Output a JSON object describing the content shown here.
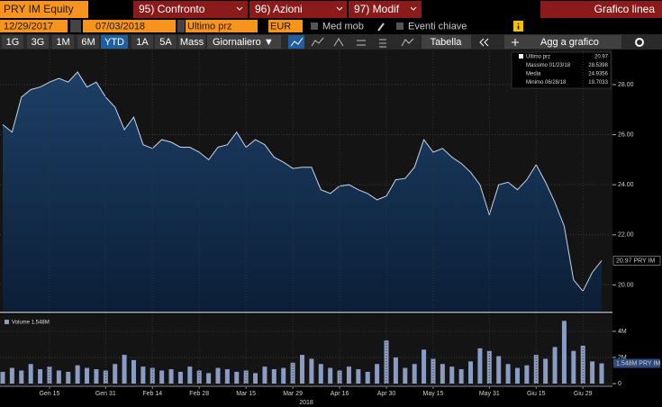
{
  "toolbar": {
    "ticker": "PRY IM Equity",
    "menu": [
      "95) Confronto",
      "96) Azioni",
      "97) Modif"
    ],
    "chart_kind": "Grafico linea",
    "start_date": "12/29/2017",
    "end_date": "07/03/2018",
    "field": "Ultimo prz",
    "currency": "EUR",
    "options": [
      "Med mob",
      "Eventi chiave"
    ],
    "periods": [
      "1G",
      "3G",
      "1M",
      "6M",
      "YTD",
      "1A",
      "5A",
      "Mass"
    ],
    "frequency": "Giornaliero ▼",
    "table_button": "Tabella",
    "add_button": "Agg a grafico"
  },
  "chart_data": [
    {
      "type": "area",
      "values": [
        26.4,
        26.1,
        27.5,
        27.8,
        27.9,
        28.1,
        28.25,
        28.1,
        28.5,
        27.9,
        28.1,
        27.5,
        27.1,
        26.2,
        26.7,
        25.6,
        25.45,
        25.8,
        25.7,
        25.5,
        25.5,
        25.3,
        25.0,
        25.5,
        25.6,
        26.1,
        25.5,
        25.8,
        25.6,
        25.1,
        24.9,
        24.65,
        24.7,
        24.7,
        23.8,
        23.65,
        23.95,
        24.0,
        23.8,
        23.65,
        23.4,
        23.55,
        24.2,
        24.25,
        24.7,
        25.8,
        25.3,
        25.45,
        25.1,
        24.85,
        24.5,
        24.0,
        22.8,
        24.0,
        24.1,
        23.8,
        24.2,
        24.8,
        24.1,
        23.3,
        22.35,
        20.2,
        19.75,
        20.5,
        20.97
      ],
      "color": "#c9d3e3",
      "ylim": [
        18.9,
        29.4
      ],
      "yticks": [
        {
          "value": 20,
          "label": "20.00"
        },
        {
          "value": 22,
          "label": "22.00"
        },
        {
          "value": 24,
          "label": "24.00"
        },
        {
          "value": 26,
          "label": "26.00"
        },
        {
          "value": 28,
          "label": "28.00"
        }
      ],
      "grid": true,
      "price_tag": "20.97 PRY IM",
      "stats": [
        [
          "Ultimo prz",
          "20.97"
        ],
        [
          "Massimo 01/23/18",
          "28.5398"
        ],
        [
          "Media",
          "24.9356"
        ],
        [
          "Minimo 06/28/18",
          "19.7033"
        ]
      ]
    },
    {
      "type": "bar",
      "legend_label": "Volume 1.548M",
      "value_tag": "1.548M PRY IM",
      "categories": [
        null,
        null,
        null,
        null,
        null,
        "Gen 15",
        null,
        null,
        null,
        null,
        null,
        "Gen 31",
        null,
        null,
        null,
        null,
        "Feb 14",
        null,
        null,
        null,
        null,
        "Feb 28",
        null,
        null,
        null,
        null,
        "Mar 15",
        null,
        null,
        null,
        null,
        "Mar 29",
        null,
        null,
        null,
        null,
        "Apr 16",
        null,
        null,
        null,
        null,
        "Apr 30",
        null,
        null,
        null,
        null,
        "May 15",
        null,
        null,
        null,
        null,
        null,
        "May 31",
        null,
        null,
        null,
        null,
        "Giu 15",
        null,
        null,
        null,
        null,
        "Giu 29",
        null,
        null
      ],
      "values": [
        900000,
        1200000,
        1000000,
        1500000,
        1100000,
        1300000,
        1000000,
        900000,
        1400000,
        1200000,
        1100000,
        1000000,
        1500000,
        2200000,
        1800000,
        1300000,
        1200000,
        1000000,
        1100000,
        900000,
        1300000,
        1000000,
        800000,
        1200000,
        1100000,
        900000,
        1000000,
        800000,
        1300000,
        1100000,
        1200000,
        1600000,
        2200000,
        1900000,
        1500000,
        1200000,
        1000000,
        1300000,
        1100000,
        900000,
        1500000,
        3300000,
        2000000,
        1200000,
        1500000,
        2600000,
        1900000,
        1500000,
        1300000,
        1100000,
        1700000,
        2700000,
        2500000,
        2100000,
        1500000,
        1200000,
        1400000,
        2200000,
        1900000,
        2800000,
        4800000,
        2500000,
        2900000,
        1700000,
        1548000
      ],
      "color": "#8a9cc4",
      "ylim": [
        0,
        5100000
      ],
      "yticks": [
        0,
        {
          "value": 2000000,
          "label": "2M"
        },
        {
          "value": 4000000,
          "label": "4M"
        }
      ],
      "x_label": "2018"
    }
  ]
}
